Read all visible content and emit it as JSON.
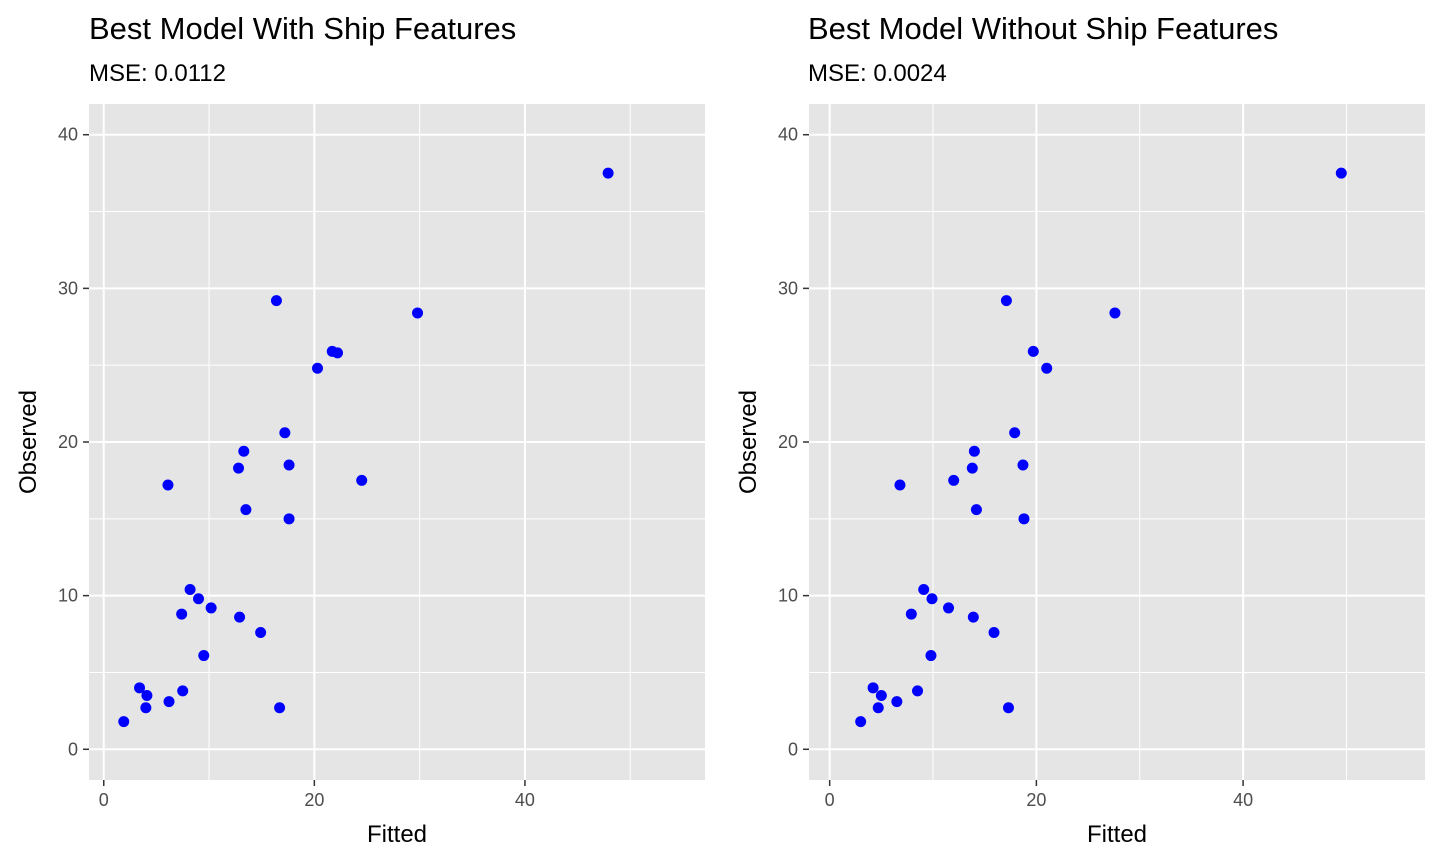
{
  "chart_data": [
    {
      "type": "scatter",
      "title": "Best Model With Ship Features",
      "subtitle": "MSE: 0.0112",
      "xlabel": "Fitted",
      "ylabel": "Observed",
      "xlim": [
        -1.4,
        57.1
      ],
      "ylim": [
        -2.0,
        42.0
      ],
      "x_ticks": [
        0,
        20,
        40
      ],
      "y_ticks": [
        0,
        10,
        20,
        30,
        40
      ],
      "x_tick_labels": [
        "0",
        "20",
        "40"
      ],
      "y_tick_labels": [
        "0",
        "10",
        "20",
        "30",
        "40"
      ],
      "grid": true,
      "point_color": "#0000FF",
      "background_color": "#E5E5E5",
      "series": [
        {
          "points": [
            [
              47.9,
              37.5
            ],
            [
              29.8,
              28.4
            ],
            [
              16.4,
              29.2
            ],
            [
              21.7,
              25.9
            ],
            [
              22.2,
              25.8
            ],
            [
              20.3,
              24.8
            ],
            [
              17.2,
              20.6
            ],
            [
              13.3,
              19.4
            ],
            [
              12.8,
              18.3
            ],
            [
              17.6,
              18.5
            ],
            [
              6.1,
              17.2
            ],
            [
              24.5,
              17.5
            ],
            [
              13.5,
              15.6
            ],
            [
              17.6,
              15.0
            ],
            [
              8.2,
              10.4
            ],
            [
              9.0,
              9.8
            ],
            [
              7.4,
              8.8
            ],
            [
              10.2,
              9.2
            ],
            [
              12.9,
              8.6
            ],
            [
              14.9,
              7.6
            ],
            [
              9.5,
              6.1
            ],
            [
              3.4,
              4.0
            ],
            [
              7.5,
              3.8
            ],
            [
              4.1,
              3.5
            ],
            [
              6.2,
              3.1
            ],
            [
              4.0,
              2.7
            ],
            [
              16.7,
              2.7
            ],
            [
              1.9,
              1.8
            ]
          ]
        }
      ]
    },
    {
      "type": "scatter",
      "title": "Best Model Without Ship Features",
      "subtitle": "MSE: 0.0024",
      "xlabel": "Fitted",
      "ylabel": "Observed",
      "xlim": [
        -2.0,
        57.6
      ],
      "ylim": [
        -2.0,
        42.0
      ],
      "x_ticks": [
        0,
        20,
        40
      ],
      "y_ticks": [
        0,
        10,
        20,
        30,
        40
      ],
      "x_tick_labels": [
        "0",
        "20",
        "40"
      ],
      "y_tick_labels": [
        "0",
        "10",
        "20",
        "30",
        "40"
      ],
      "grid": true,
      "point_color": "#0000FF",
      "background_color": "#E5E5E5",
      "series": [
        {
          "points": [
            [
              49.5,
              37.5
            ],
            [
              27.6,
              28.4
            ],
            [
              17.1,
              29.2
            ],
            [
              19.7,
              25.9
            ],
            [
              21.0,
              24.8
            ],
            [
              17.9,
              20.6
            ],
            [
              14.0,
              19.4
            ],
            [
              13.8,
              18.3
            ],
            [
              18.7,
              18.5
            ],
            [
              6.8,
              17.2
            ],
            [
              12.0,
              17.5
            ],
            [
              14.2,
              15.6
            ],
            [
              18.8,
              15.0
            ],
            [
              9.1,
              10.4
            ],
            [
              9.9,
              9.8
            ],
            [
              7.9,
              8.8
            ],
            [
              11.5,
              9.2
            ],
            [
              13.9,
              8.6
            ],
            [
              15.9,
              7.6
            ],
            [
              9.8,
              6.1
            ],
            [
              4.2,
              4.0
            ],
            [
              8.5,
              3.8
            ],
            [
              5.0,
              3.5
            ],
            [
              6.5,
              3.1
            ],
            [
              4.7,
              2.7
            ],
            [
              17.3,
              2.7
            ],
            [
              3.0,
              1.8
            ]
          ]
        }
      ]
    }
  ]
}
